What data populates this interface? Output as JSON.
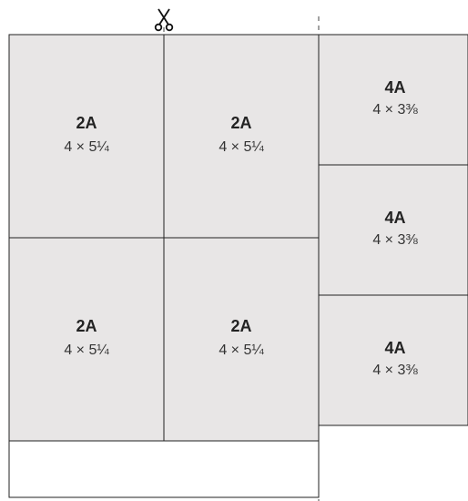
{
  "colors": {
    "piece_fill": "#e8e6e6",
    "line": "#222222",
    "background": "#ffffff"
  },
  "icons": {
    "cut_marker": "scissors-icon"
  },
  "pieces": [
    {
      "code": "2A",
      "size": "4 × 5¼"
    },
    {
      "code": "2A",
      "size": "4 × 5¼"
    },
    {
      "code": "2A",
      "size": "4 × 5¼"
    },
    {
      "code": "2A",
      "size": "4 × 5¼"
    },
    {
      "code": "4A",
      "size": "4 × 3⅜"
    },
    {
      "code": "4A",
      "size": "4 × 3⅜"
    },
    {
      "code": "4A",
      "size": "4 × 3⅜"
    }
  ]
}
